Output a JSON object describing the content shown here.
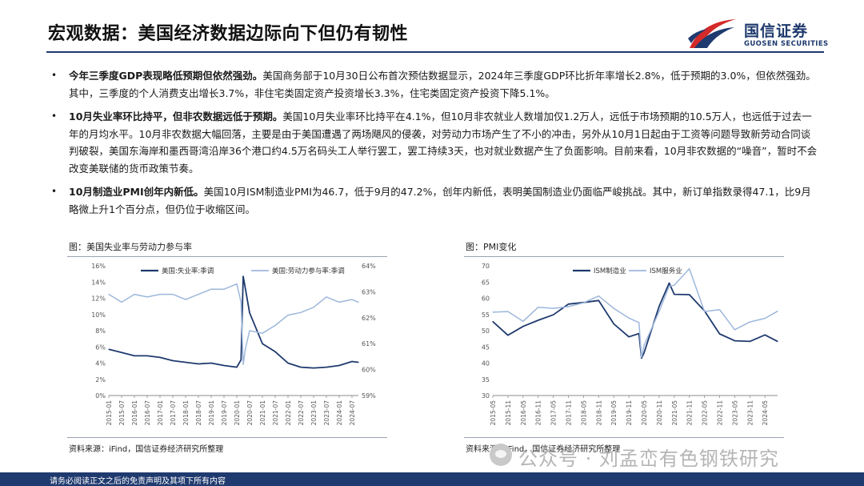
{
  "header": {
    "title": "宏观数据：美国经济数据边际向下但仍有韧性",
    "logo_cn": "国信证券",
    "logo_en": "GUOSEN SECURITIES"
  },
  "bullets": [
    {
      "lead": "今年三季度GDP表现略低预期但依然强劲。",
      "text": "美国商务部于10月30日公布首次预估数据显示，2024年三季度GDP环比折年率增长2.8%，低于预期的3.0%，但依然强劲。其中，三季度的个人消费支出增长3.7%，非住宅类固定资产投资增长3.3%，住宅类固定资产投资下降5.1%。"
    },
    {
      "lead": "10月失业率环比持平，但非农数据远低于预期。",
      "text": "美国10月失业率环比持平在4.1%，但10月非农就业人数增加仅1.2万人，远低于市场预期的10.5万人，也远低于过去一年的月均水平。10月非农数据大幅回落，主要是由于美国遭遇了两场飓风的侵袭，对劳动力市场产生了不小的冲击，另外从10月1日起由于工资等问题导致新劳动合同谈判破裂，美国东海岸和墨西哥湾沿岸36个港口约4.5万名码头工人举行罢工，罢工持续3天，也对就业数据产生了负面影响。目前来看，10月非农数据的“噪音”，暂时不会改变美联储的货币政策节奏。"
    },
    {
      "lead": "10月制造业PMI创年内新低。",
      "text": "美国10月ISM制造业PMI为46.7，低于9月的47.2%，创年内新低，表明美国制造业仍面临严峻挑战。其中，新订单指数录得47.1，比9月略微上升1个百分点，但仍位于收缩区间。"
    }
  ],
  "panels": {
    "left_title": "图：美国失业率与劳动力参与率",
    "right_title": "图：PMI变化",
    "left_source": "资料来源：iFind，国信证券经济研究所整理",
    "right_source": "资料来源：iFind，国信证券经济研究所整理"
  },
  "footer": {
    "disclaimer": "请务必阅读正文之后的免责声明及其项下所有内容"
  },
  "watermark": {
    "text": "公众号 · 刘孟峦有色钢铁研究"
  },
  "colors": {
    "navy": "#1f3a6e",
    "light_series": "#9db7db",
    "logo_red": "#d42a2a"
  },
  "chart_data": [
    {
      "type": "line",
      "title": "美国失业率与劳动力参与率",
      "x": [
        "2015-01",
        "2015-07",
        "2016-01",
        "2016-07",
        "2017-01",
        "2017-07",
        "2018-01",
        "2018-07",
        "2019-01",
        "2019-07",
        "2020-01",
        "2020-03",
        "2020-04",
        "2020-05",
        "2020-07",
        "2021-01",
        "2021-07",
        "2022-01",
        "2022-07",
        "2023-01",
        "2023-07",
        "2024-01",
        "2024-07",
        "2024-10"
      ],
      "series": [
        {
          "name": "美国:失业率:季调",
          "axis": "left",
          "values": [
            5.7,
            5.3,
            4.9,
            4.9,
            4.7,
            4.3,
            4.1,
            3.9,
            4.0,
            3.7,
            3.5,
            4.4,
            14.7,
            13.2,
            10.2,
            6.4,
            5.4,
            4.0,
            3.5,
            3.4,
            3.5,
            3.7,
            4.2,
            4.1
          ]
        },
        {
          "name": "美国:劳动力参与率:季调",
          "axis": "right",
          "values": [
            62.9,
            62.6,
            62.9,
            62.8,
            62.9,
            62.9,
            62.7,
            62.9,
            63.1,
            63.1,
            63.3,
            62.6,
            60.2,
            60.8,
            61.5,
            61.4,
            61.7,
            62.1,
            62.2,
            62.4,
            62.8,
            62.6,
            62.7,
            62.6
          ]
        }
      ],
      "x_ticks": [
        "2015-01",
        "2015-07",
        "2016-01",
        "2016-07",
        "2017-01",
        "2017-07",
        "2018-01",
        "2018-07",
        "2019-01",
        "2019-07",
        "2020-01",
        "2020-07",
        "2021-01",
        "2021-07",
        "2022-01",
        "2022-07",
        "2023-01",
        "2023-07",
        "2024-01",
        "2024-07"
      ],
      "ylim_left": [
        0,
        16
      ],
      "yticks_left": [
        "0%",
        "2%",
        "4%",
        "6%",
        "8%",
        "10%",
        "12%",
        "14%",
        "16%"
      ],
      "ylim_right": [
        59,
        64
      ],
      "yticks_right": [
        "59%",
        "60%",
        "61%",
        "62%",
        "63%",
        "64%"
      ],
      "legend": "top"
    },
    {
      "type": "line",
      "title": "PMI变化",
      "x": [
        "2015-05",
        "2015-11",
        "2016-05",
        "2016-11",
        "2017-05",
        "2017-11",
        "2018-05",
        "2018-11",
        "2019-05",
        "2019-11",
        "2020-03",
        "2020-04",
        "2020-05",
        "2020-11",
        "2021-03",
        "2021-05",
        "2021-11",
        "2022-05",
        "2022-11",
        "2023-05",
        "2023-11",
        "2024-05",
        "2024-10"
      ],
      "series": [
        {
          "name": "ISM制造业",
          "values": [
            52.8,
            48.6,
            51.3,
            53.2,
            54.9,
            58.2,
            58.7,
            59.3,
            52.1,
            48.1,
            49.1,
            41.5,
            43.1,
            57.5,
            64.7,
            61.2,
            61.1,
            56.1,
            49.0,
            46.9,
            46.7,
            48.7,
            46.7
          ]
        },
        {
          "name": "ISM服务业",
          "values": [
            55.7,
            55.9,
            52.9,
            57.2,
            56.9,
            57.4,
            58.6,
            60.7,
            56.9,
            53.9,
            52.5,
            41.8,
            45.4,
            55.9,
            63.7,
            64.0,
            69.1,
            55.9,
            56.5,
            50.3,
            52.7,
            53.8,
            56.0
          ]
        }
      ],
      "x_ticks": [
        "2015-05",
        "2015-11",
        "2016-05",
        "2016-11",
        "2017-05",
        "2017-11",
        "2018-05",
        "2018-11",
        "2019-05",
        "2019-11",
        "2020-05",
        "2020-11",
        "2021-05",
        "2021-11",
        "2022-05",
        "2022-11",
        "2023-05",
        "2023-11",
        "2024-05"
      ],
      "ylim": [
        30,
        70
      ],
      "yticks": [
        "30",
        "35",
        "40",
        "45",
        "50",
        "55",
        "60",
        "65",
        "70"
      ],
      "legend": "top"
    }
  ]
}
